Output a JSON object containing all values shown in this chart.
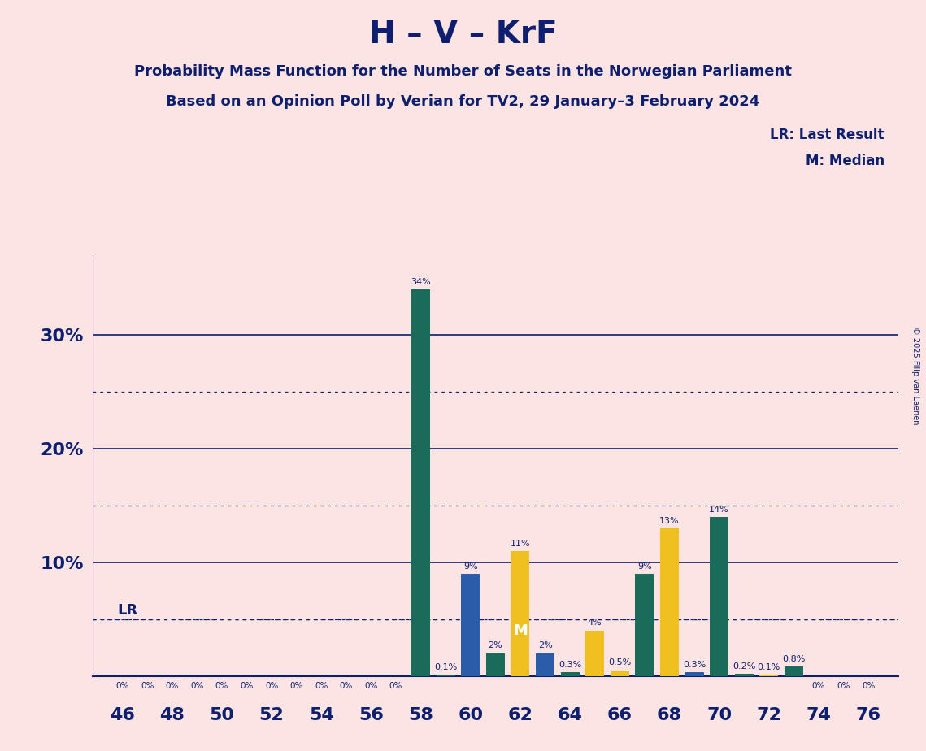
{
  "title": "H – V – KrF",
  "subtitle1": "Probability Mass Function for the Number of Seats in the Norwegian Parliament",
  "subtitle2": "Based on an Opinion Poll by Verian for TV2, 29 January–3 February 2024",
  "copyright": "© 2025 Filip van Laenen",
  "background_color": "#fce4e4",
  "bar_data": [
    {
      "seat": 46,
      "value": 0.0,
      "color": "#1a6b5a"
    },
    {
      "seat": 47,
      "value": 0.0,
      "color": "#1a6b5a"
    },
    {
      "seat": 48,
      "value": 0.0,
      "color": "#1a6b5a"
    },
    {
      "seat": 49,
      "value": 0.0,
      "color": "#1a6b5a"
    },
    {
      "seat": 50,
      "value": 0.0,
      "color": "#1a6b5a"
    },
    {
      "seat": 51,
      "value": 0.0,
      "color": "#1a6b5a"
    },
    {
      "seat": 52,
      "value": 0.0,
      "color": "#1a6b5a"
    },
    {
      "seat": 53,
      "value": 0.0,
      "color": "#1a6b5a"
    },
    {
      "seat": 54,
      "value": 0.0,
      "color": "#1a6b5a"
    },
    {
      "seat": 55,
      "value": 0.0,
      "color": "#1a6b5a"
    },
    {
      "seat": 56,
      "value": 0.0,
      "color": "#1a6b5a"
    },
    {
      "seat": 57,
      "value": 0.0,
      "color": "#1a6b5a"
    },
    {
      "seat": 58,
      "value": 34.0,
      "color": "#1a6b5a"
    },
    {
      "seat": 59,
      "value": 0.1,
      "color": "#1a6b5a"
    },
    {
      "seat": 60,
      "value": 9.0,
      "color": "#2a5caa"
    },
    {
      "seat": 61,
      "value": 2.0,
      "color": "#1a6b5a"
    },
    {
      "seat": 62,
      "value": 11.0,
      "color": "#f0c020"
    },
    {
      "seat": 63,
      "value": 2.0,
      "color": "#2a5caa"
    },
    {
      "seat": 64,
      "value": 0.3,
      "color": "#1a6b5a"
    },
    {
      "seat": 65,
      "value": 4.0,
      "color": "#f0c020"
    },
    {
      "seat": 66,
      "value": 0.5,
      "color": "#f0c020"
    },
    {
      "seat": 67,
      "value": 9.0,
      "color": "#1a6b5a"
    },
    {
      "seat": 68,
      "value": 13.0,
      "color": "#f0c020"
    },
    {
      "seat": 69,
      "value": 0.3,
      "color": "#2a5caa"
    },
    {
      "seat": 70,
      "value": 14.0,
      "color": "#1a6b5a"
    },
    {
      "seat": 71,
      "value": 0.2,
      "color": "#1a6b5a"
    },
    {
      "seat": 72,
      "value": 0.1,
      "color": "#f0c020"
    },
    {
      "seat": 73,
      "value": 0.8,
      "color": "#1a6b5a"
    },
    {
      "seat": 74,
      "value": 0.0,
      "color": "#1a6b5a"
    },
    {
      "seat": 75,
      "value": 0.0,
      "color": "#1a6b5a"
    },
    {
      "seat": 76,
      "value": 0.0,
      "color": "#1a6b5a"
    }
  ],
  "label_annotations": [
    {
      "seat": 46,
      "value": 0.0,
      "label": "0%"
    },
    {
      "seat": 47,
      "value": 0.0,
      "label": "0%"
    },
    {
      "seat": 48,
      "value": 0.0,
      "label": "0%"
    },
    {
      "seat": 49,
      "value": 0.0,
      "label": "0%"
    },
    {
      "seat": 50,
      "value": 0.0,
      "label": "0%"
    },
    {
      "seat": 51,
      "value": 0.0,
      "label": "0%"
    },
    {
      "seat": 52,
      "value": 0.0,
      "label": "0%"
    },
    {
      "seat": 53,
      "value": 0.0,
      "label": "0%"
    },
    {
      "seat": 54,
      "value": 0.0,
      "label": "0%"
    },
    {
      "seat": 55,
      "value": 0.0,
      "label": "0%"
    },
    {
      "seat": 56,
      "value": 0.0,
      "label": "0%"
    },
    {
      "seat": 57,
      "value": 0.0,
      "label": "0%"
    },
    {
      "seat": 58,
      "value": 34.0,
      "label": "34%"
    },
    {
      "seat": 59,
      "value": 0.1,
      "label": "0.1%"
    },
    {
      "seat": 60,
      "value": 9.0,
      "label": "9%"
    },
    {
      "seat": 61,
      "value": 2.0,
      "label": "2%"
    },
    {
      "seat": 62,
      "value": 11.0,
      "label": "11%"
    },
    {
      "seat": 63,
      "value": 2.0,
      "label": "2%"
    },
    {
      "seat": 64,
      "value": 0.3,
      "label": "0.3%"
    },
    {
      "seat": 65,
      "value": 4.0,
      "label": "4%"
    },
    {
      "seat": 66,
      "value": 0.5,
      "label": "0.5%"
    },
    {
      "seat": 67,
      "value": 9.0,
      "label": "9%"
    },
    {
      "seat": 68,
      "value": 13.0,
      "label": "13%"
    },
    {
      "seat": 69,
      "value": 0.3,
      "label": "0.3%"
    },
    {
      "seat": 70,
      "value": 14.0,
      "label": "14%"
    },
    {
      "seat": 71,
      "value": 0.2,
      "label": "0.2%"
    },
    {
      "seat": 72,
      "value": 0.1,
      "label": "0.1%"
    },
    {
      "seat": 73,
      "value": 0.8,
      "label": "0.8%"
    },
    {
      "seat": 74,
      "value": 0.0,
      "label": "0%"
    },
    {
      "seat": 75,
      "value": 0.0,
      "label": "0%"
    },
    {
      "seat": 76,
      "value": 0.0,
      "label": "0%"
    }
  ],
  "lr_value": 5.0,
  "median_seat": 62,
  "ylim": [
    0,
    37
  ],
  "solid_yticks": [
    10,
    20,
    30
  ],
  "dotted_yticks": [
    5,
    15,
    25
  ],
  "xtick_seats": [
    46,
    48,
    50,
    52,
    54,
    56,
    58,
    60,
    62,
    64,
    66,
    68,
    70,
    72,
    74,
    76
  ],
  "teal_color": "#1a6b5a",
  "blue_color": "#2a5caa",
  "yellow_color": "#f0c020",
  "text_color": "#0d1f6e",
  "line_color": "#0d1f6e"
}
